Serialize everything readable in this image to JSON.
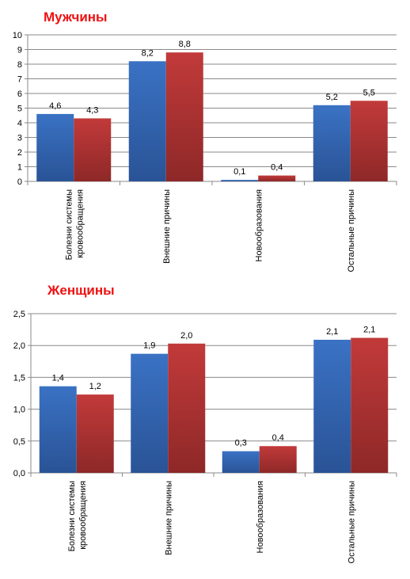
{
  "chart_data": [
    {
      "type": "bar",
      "title": "Мужчины",
      "categories": [
        "Болезни системы кровообращения",
        "Внешние причины",
        "Новообразования",
        "Остальные причины"
      ],
      "category_lines": [
        [
          "Болезни системы",
          "кровообращения"
        ],
        [
          "Внешние причины"
        ],
        [
          "Новообразования"
        ],
        [
          "Остальные причины"
        ]
      ],
      "series": [
        {
          "values": [
            4.6,
            8.2,
            0.1,
            5.2
          ],
          "labels": [
            "4,6",
            "8,2",
            "0,1",
            "5,2"
          ],
          "color": "#3a72c4"
        },
        {
          "values": [
            4.3,
            8.8,
            0.4,
            5.5
          ],
          "labels": [
            "4,3",
            "8,8",
            "0,4",
            "5,5"
          ],
          "color": "#c23a3a"
        }
      ],
      "ylim": [
        0,
        10
      ],
      "yticks": [
        "0",
        "1",
        "2",
        "3",
        "4",
        "5",
        "6",
        "7",
        "8",
        "9",
        "10"
      ],
      "grid": true,
      "legend": "none"
    },
    {
      "type": "bar",
      "title": "Женщины",
      "categories": [
        "Болезни системы кровообращения",
        "Внешние причины",
        "Новообразования",
        "Остальные причины"
      ],
      "category_lines": [
        [
          "Болезни системы",
          "кровообращения"
        ],
        [
          "Внешние причины"
        ],
        [
          "Новообразования"
        ],
        [
          "Остальные причины"
        ]
      ],
      "series": [
        {
          "values": [
            1.36,
            1.87,
            0.34,
            2.09
          ],
          "labels": [
            "1,4",
            "1,9",
            "0,3",
            "2,1"
          ],
          "color": "#3a72c4"
        },
        {
          "values": [
            1.23,
            2.03,
            0.42,
            2.12
          ],
          "labels": [
            "1,2",
            "2,0",
            "0,4",
            "2,1"
          ],
          "color": "#c23a3a"
        }
      ],
      "ylim": [
        0,
        2.5
      ],
      "yticks": [
        "0,0",
        "0,5",
        "1,0",
        "1,5",
        "2,0",
        "2,5"
      ],
      "grid": true,
      "legend": "none"
    }
  ]
}
